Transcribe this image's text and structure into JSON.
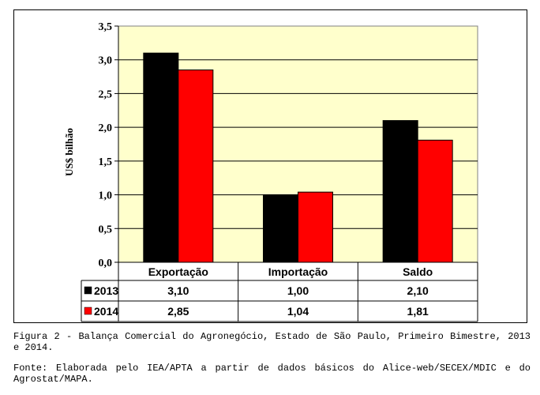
{
  "chart_data": {
    "type": "bar",
    "categories": [
      "Exportação",
      "Importação",
      "Saldo"
    ],
    "series": [
      {
        "name": "2013",
        "values": [
          3.1,
          1.0,
          2.1
        ],
        "labels": [
          "3,10",
          "1,00",
          "2,10"
        ],
        "color": "#000000"
      },
      {
        "name": "2014",
        "values": [
          2.85,
          1.04,
          1.81
        ],
        "labels": [
          "2,85",
          "1,04",
          "1,81"
        ],
        "color": "#ff0000"
      }
    ],
    "ylabel": "US$ bilhão",
    "ylim": [
      0,
      3.5
    ],
    "yticks": [
      0,
      0.5,
      1.0,
      1.5,
      2.0,
      2.5,
      3.0,
      3.5
    ],
    "ytick_labels": [
      "0,0",
      "0,5",
      "1,0",
      "1,5",
      "2,0",
      "2,5",
      "3,0",
      "3,5"
    ],
    "plot_background": "#ffffcc",
    "grid": true,
    "legend": "data-table"
  },
  "caption": {
    "figure": "Figura 2 - Balança Comercial do Agronegócio, Estado de São Paulo, Primeiro Bimestre, 2013 e 2014.",
    "source": "Fonte: Elaborada pelo IEA/APTA a partir de dados básicos do Alice-web/SECEX/MDIC e do Agrostat/MAPA."
  }
}
